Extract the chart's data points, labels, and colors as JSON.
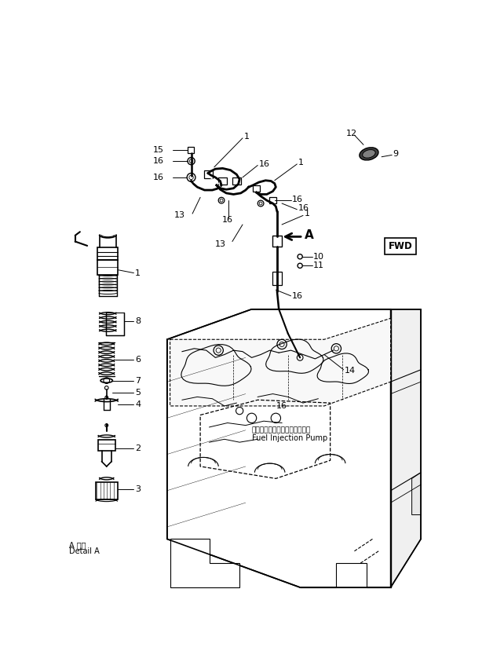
{
  "bg_color": "#ffffff",
  "line_color": "#000000",
  "fig_width": 6.42,
  "fig_height": 8.43,
  "dpi": 100,
  "detail_a_jp": "A 詳細",
  "detail_a_en": "Detail A",
  "fwd_label": "FWD",
  "fuel_jp": "フェルインジェクションポンプ",
  "fuel_en": "Fuel Injection Pump"
}
